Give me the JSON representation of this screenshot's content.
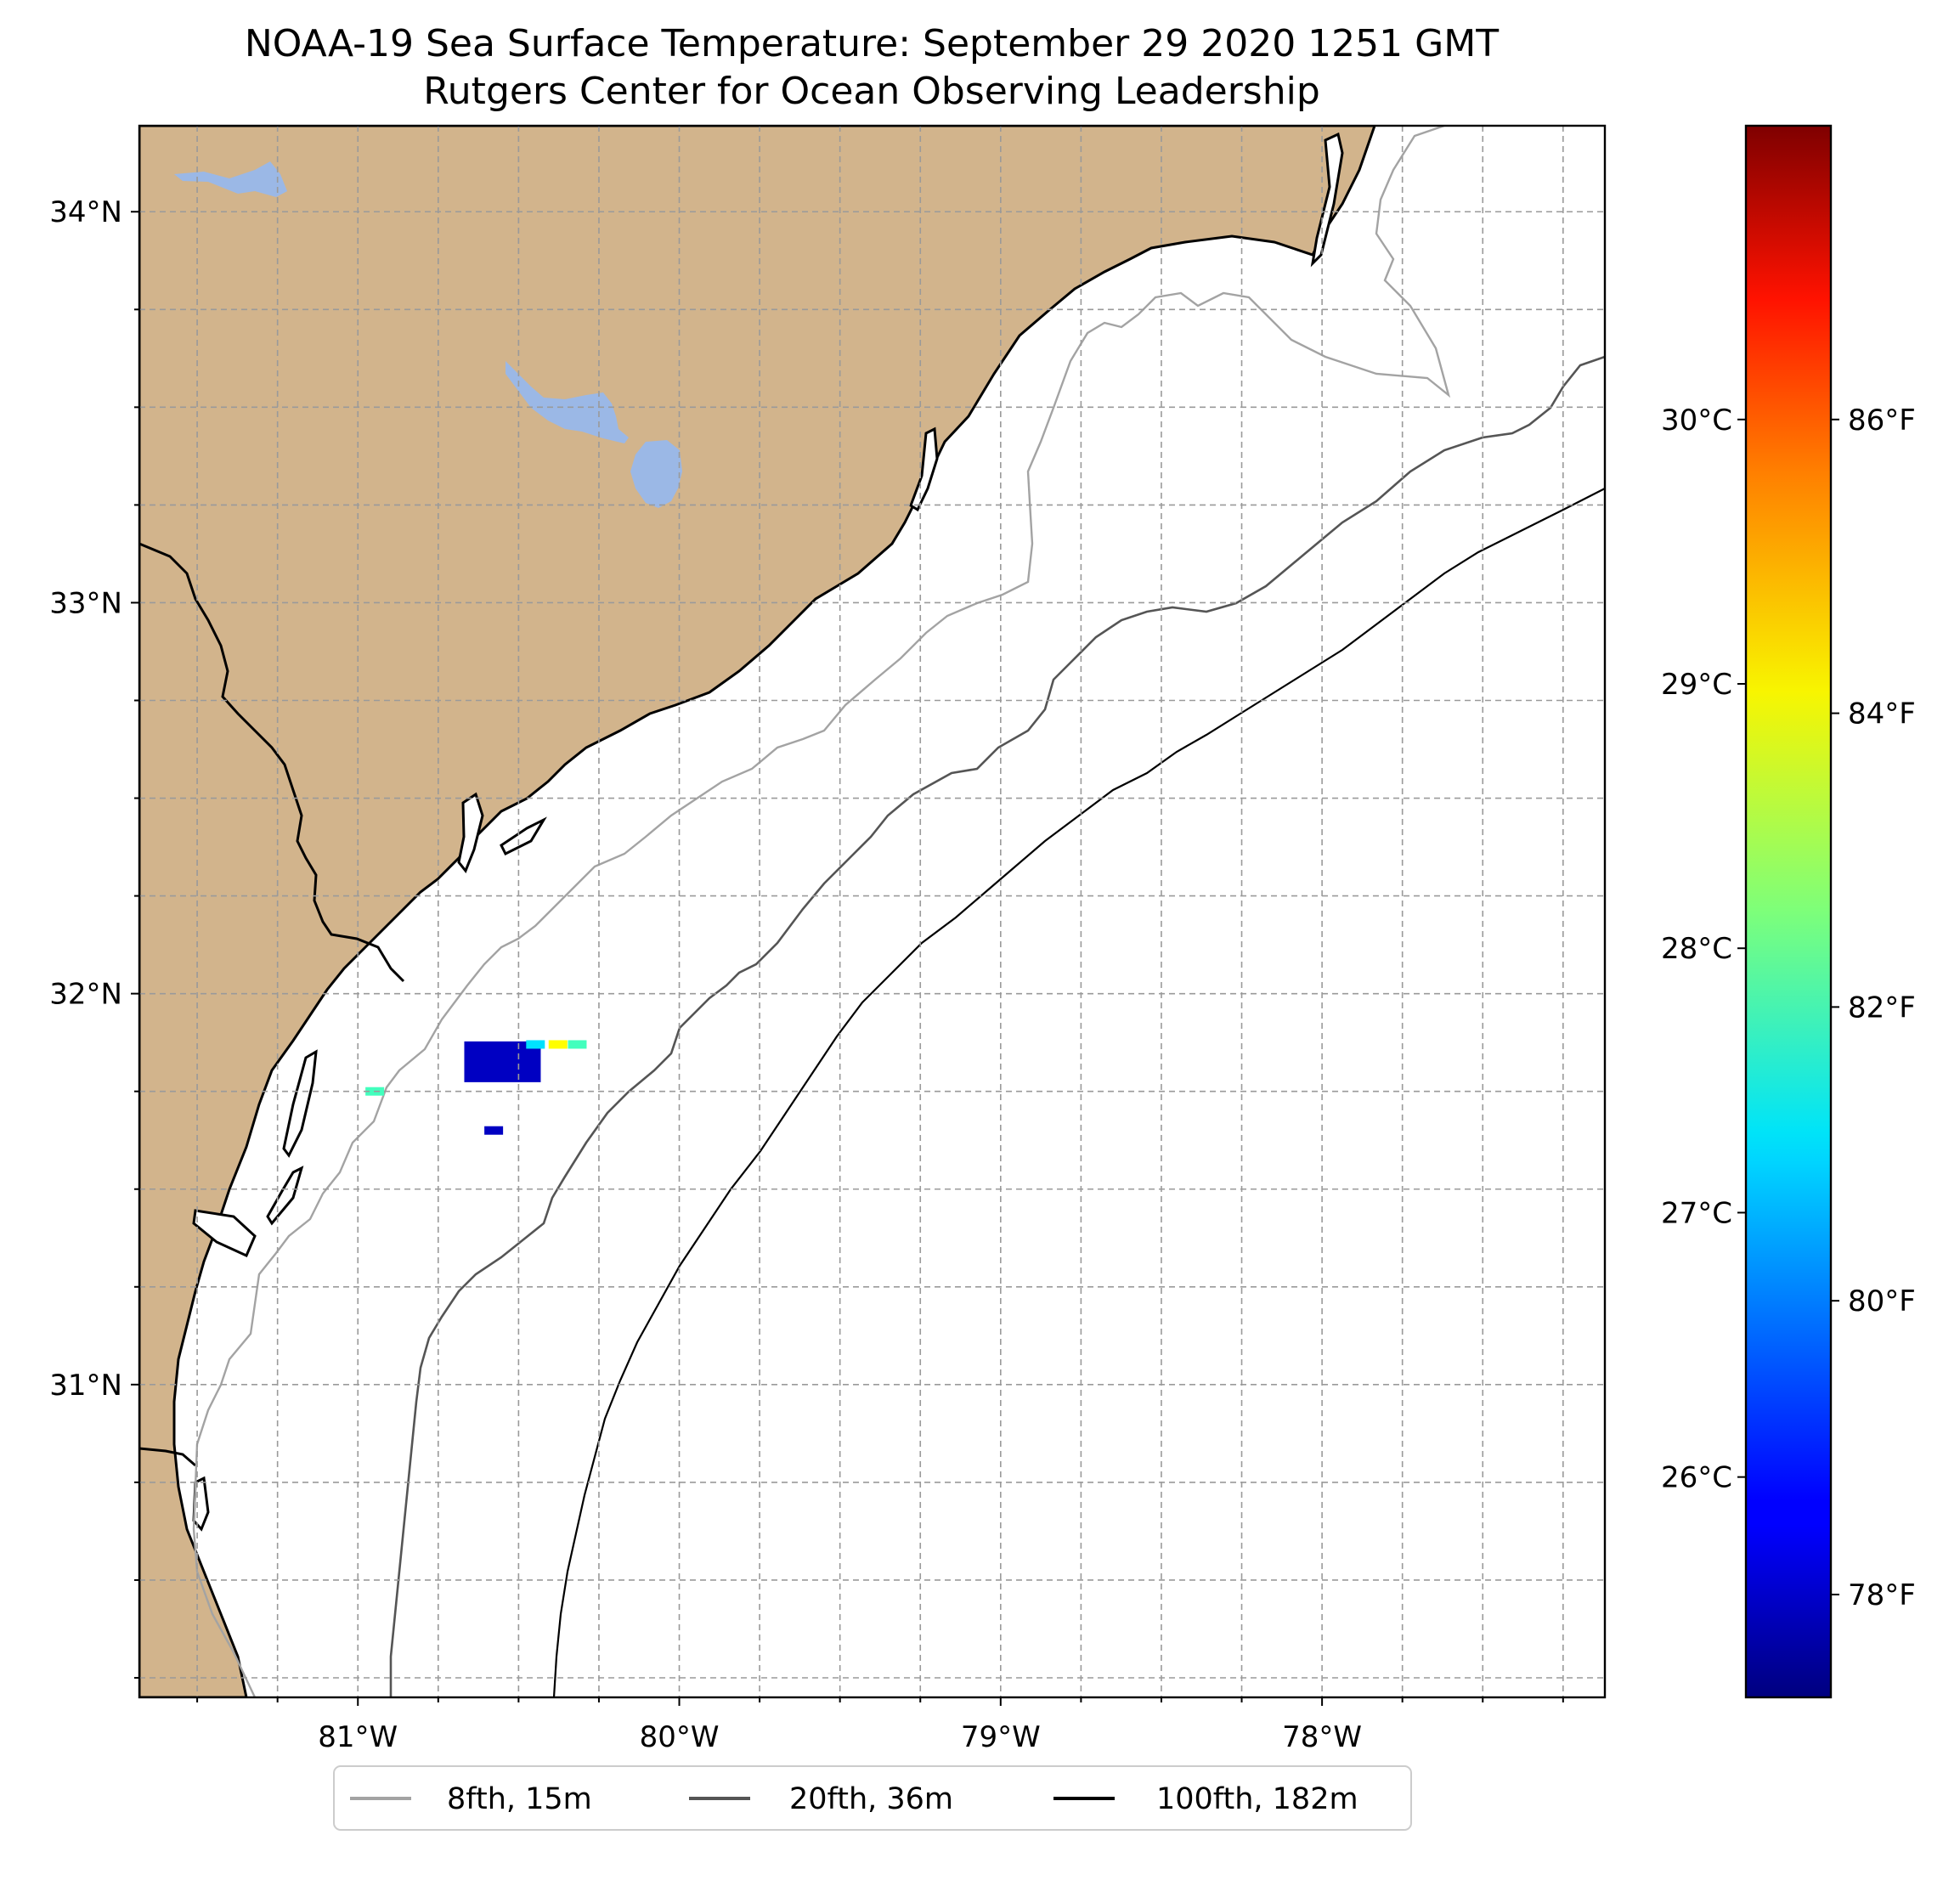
{
  "title": {
    "line1": "NOAA-19 Sea Surface Temperature: September 29 2020 1251 GMT",
    "line2": "Rutgers Center for Ocean Observing Leadership"
  },
  "map": {
    "extent": {
      "lon_min": -81.68,
      "lon_max": -77.12,
      "lat_min": 30.2,
      "lat_max": 34.22
    },
    "land_color": "#d2b48c",
    "lake_color": "#9bb8e6",
    "ocean_color": "#ffffff",
    "coastline_color": "#000000",
    "gridlines": true,
    "grid_lon_step": 0.25,
    "grid_lat_step": 0.25
  },
  "x_axis": {
    "ticks": [
      {
        "lon": -81,
        "label": "81°W"
      },
      {
        "lon": -80,
        "label": "80°W"
      },
      {
        "lon": -79,
        "label": "79°W"
      },
      {
        "lon": -78,
        "label": "78°W"
      }
    ]
  },
  "y_axis": {
    "ticks": [
      {
        "lat": 34,
        "label": "34°N"
      },
      {
        "lat": 33,
        "label": "33°N"
      },
      {
        "lat": 32,
        "label": "32°N"
      },
      {
        "lat": 31,
        "label": "31°N"
      }
    ]
  },
  "colorbar": {
    "colormap": "jet",
    "celsius_ticks": [
      {
        "value": 26,
        "label": "26°C"
      },
      {
        "value": 27,
        "label": "27°C"
      },
      {
        "value": 28,
        "label": "28°C"
      },
      {
        "value": 29,
        "label": "29°C"
      },
      {
        "value": 30,
        "label": "30°C"
      }
    ],
    "fahrenheit_ticks": [
      {
        "value": 78,
        "label": "78°F"
      },
      {
        "value": 80,
        "label": "80°F"
      },
      {
        "value": 82,
        "label": "82°F"
      },
      {
        "value": 84,
        "label": "84°F"
      },
      {
        "value": 86,
        "label": "86°F"
      }
    ]
  },
  "legend": {
    "placement": "bottom-center",
    "items": [
      {
        "label": "8fth, 15m",
        "color": "#a3a3a3"
      },
      {
        "label": "20fth, 36m",
        "color": "#555555"
      },
      {
        "label": "100fth, 182m",
        "color": "#000000"
      }
    ]
  },
  "sst_observations": [
    {
      "lon": -80.55,
      "lat": 31.83,
      "temp_f": 78
    },
    {
      "lon": -80.45,
      "lat": 31.87,
      "temp_f": 81
    },
    {
      "lon": -80.38,
      "lat": 31.87,
      "temp_f": 84
    },
    {
      "lon": -80.32,
      "lat": 31.87,
      "temp_f": 82
    },
    {
      "lon": -80.58,
      "lat": 31.65,
      "temp_f": 78
    },
    {
      "lon": -80.95,
      "lat": 31.75,
      "temp_f": 82
    }
  ]
}
